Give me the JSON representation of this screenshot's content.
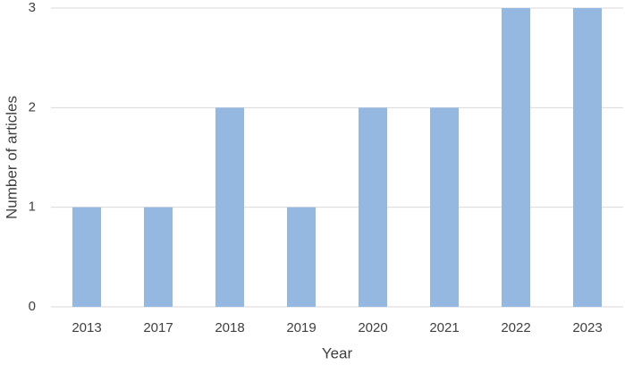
{
  "chart_data": {
    "type": "bar",
    "x_label": "Year",
    "y_label": "Number of articles",
    "categories": [
      "2013",
      "2017",
      "2018",
      "2019",
      "2020",
      "2021",
      "2022",
      "2023"
    ],
    "values": [
      1,
      1,
      2,
      1,
      2,
      2,
      3,
      3
    ],
    "color": "#95b8e0",
    "ylim": [
      0,
      3
    ],
    "yticks": [
      0,
      1,
      2,
      3
    ],
    "grid": true
  }
}
